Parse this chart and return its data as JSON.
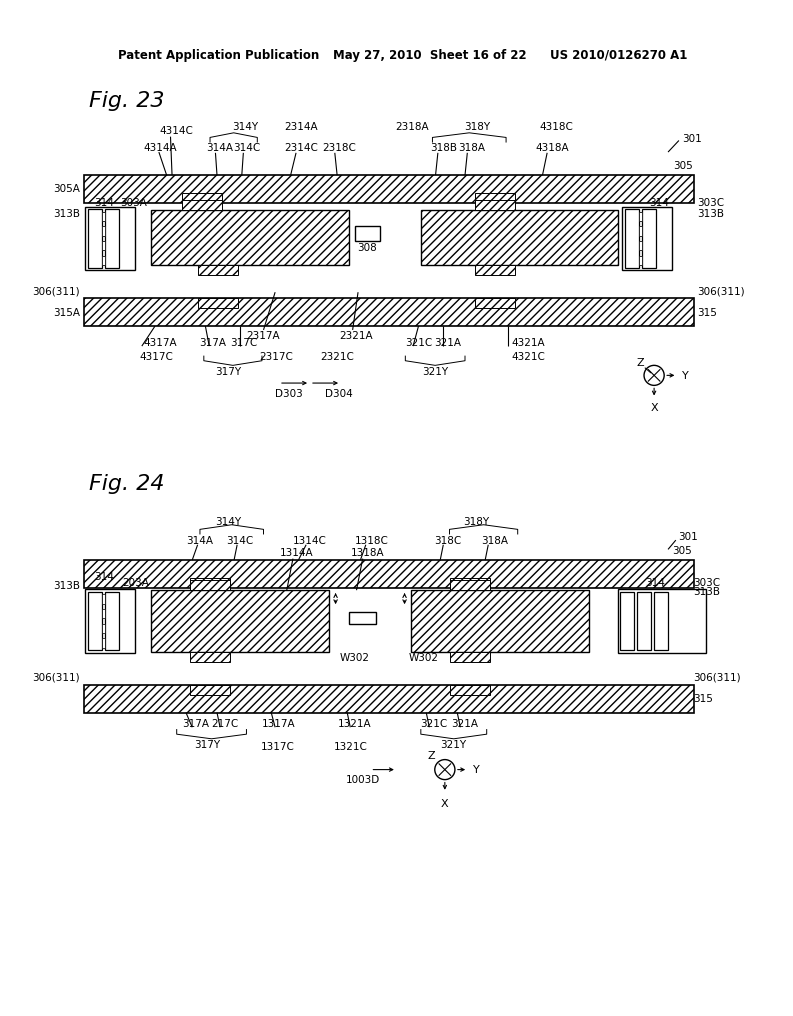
{
  "bg_color": "#ffffff",
  "header_line1": "Patent Application Publication",
  "header_line2": "May 27, 2010  Sheet 16 of 22",
  "header_line3": "US 2010/0126270 A1",
  "fig23_title": "Fig. 23",
  "fig24_title": "Fig. 24"
}
